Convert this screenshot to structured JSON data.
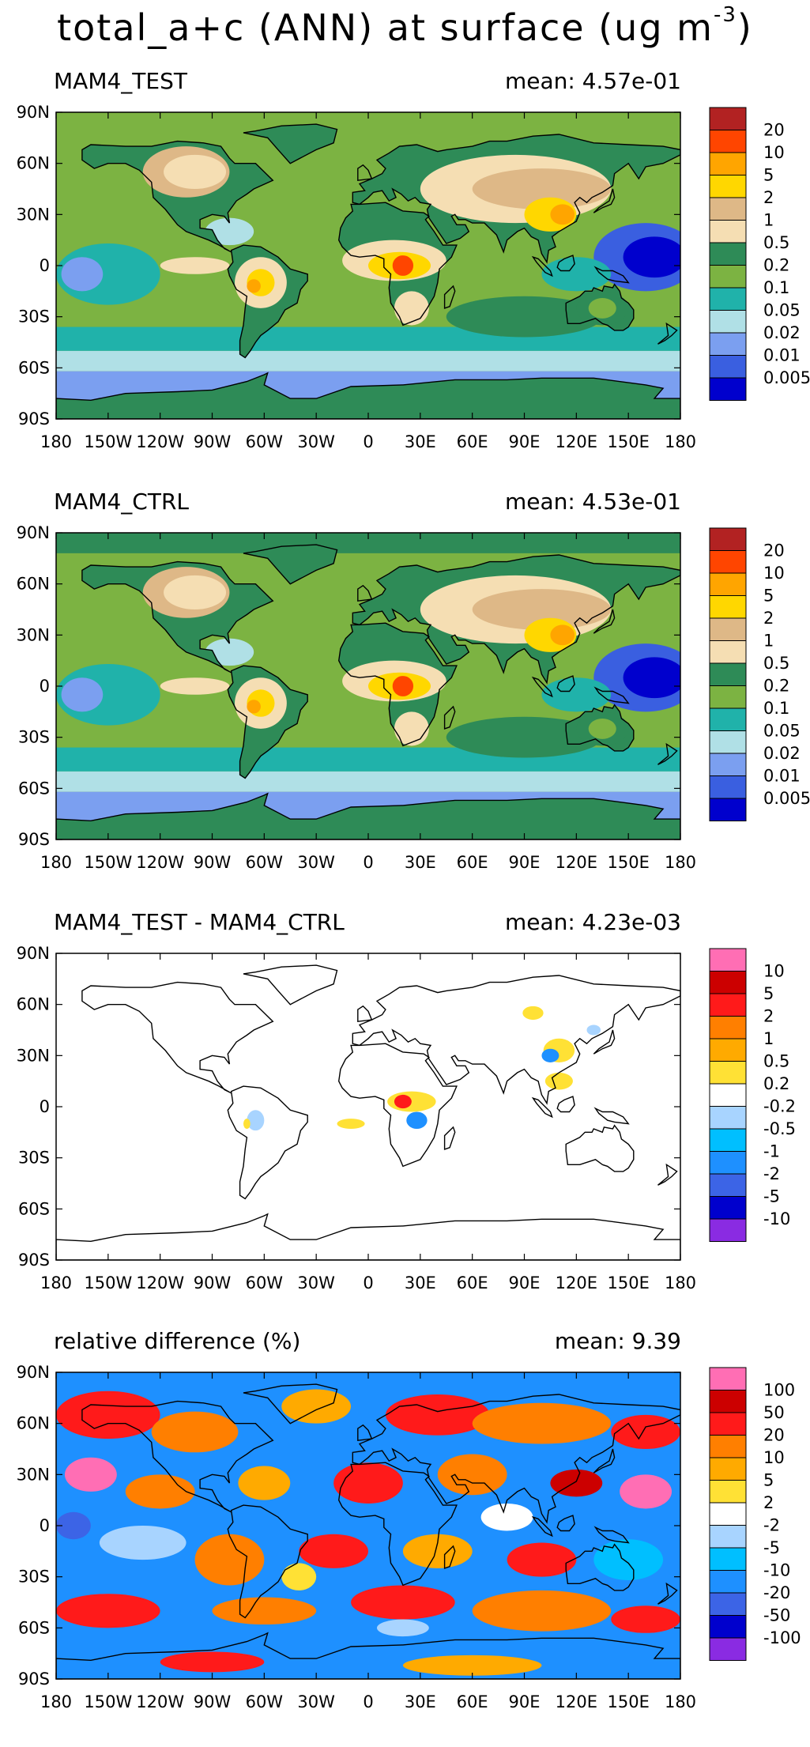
{
  "title": {
    "main": "total_a+c (ANN) at surface (ug m",
    "exponent": "-3",
    "close": ")"
  },
  "lat_labels": [
    "90N",
    "60N",
    "30N",
    "0",
    "30S",
    "60S",
    "90S"
  ],
  "lon_labels": [
    "180",
    "150W",
    "120W",
    "90W",
    "60W",
    "30W",
    "0",
    "30E",
    "60E",
    "90E",
    "120E",
    "150E",
    "180"
  ],
  "colors": {
    "abs_scale": [
      "#b22222",
      "#ff4500",
      "#ffa500",
      "#ffd700",
      "#deb887",
      "#f5deb3",
      "#2e8b57",
      "#7cb342",
      "#20b2aa",
      "#b0e0e6",
      "#7b9ff0",
      "#3a5fe0",
      "#0000cd"
    ],
    "diff_scale": [
      "#ff6eb4",
      "#cc0000",
      "#ff1a1a",
      "#ff7f00",
      "#ffaa00",
      "#ffe135",
      "#ffffff",
      "#a8d4ff",
      "#00bfff",
      "#1e90ff",
      "#3c64e6",
      "#0000cd",
      "#8a2be2"
    ]
  },
  "panels": [
    {
      "label": "MAM4_TEST",
      "mean": "mean: 4.57e-01",
      "colorbar_labels": [
        "20",
        "10",
        "5",
        "2",
        "1",
        "0.5",
        "0.2",
        "0.1",
        "0.05",
        "0.02",
        "0.01",
        "0.005"
      ],
      "scale": "abs"
    },
    {
      "label": "MAM4_CTRL",
      "mean": "mean: 4.53e-01",
      "colorbar_labels": [
        "20",
        "10",
        "5",
        "2",
        "1",
        "0.5",
        "0.2",
        "0.1",
        "0.05",
        "0.02",
        "0.01",
        "0.005"
      ],
      "scale": "abs"
    },
    {
      "label": "MAM4_TEST - MAM4_CTRL",
      "mean": "mean: 4.23e-03",
      "colorbar_labels": [
        "10",
        "5",
        "2",
        "1",
        "0.5",
        "0.2",
        "-0.2",
        "-0.5",
        "-1",
        "-2",
        "-5",
        "-10"
      ],
      "scale": "diff"
    },
    {
      "label": "relative difference (%)",
      "mean": "mean:  9.39",
      "colorbar_labels": [
        "100",
        "50",
        "20",
        "10",
        "5",
        "2",
        "-2",
        "-5",
        "-10",
        "-20",
        "-50",
        "-100"
      ],
      "scale": "diff"
    }
  ]
}
